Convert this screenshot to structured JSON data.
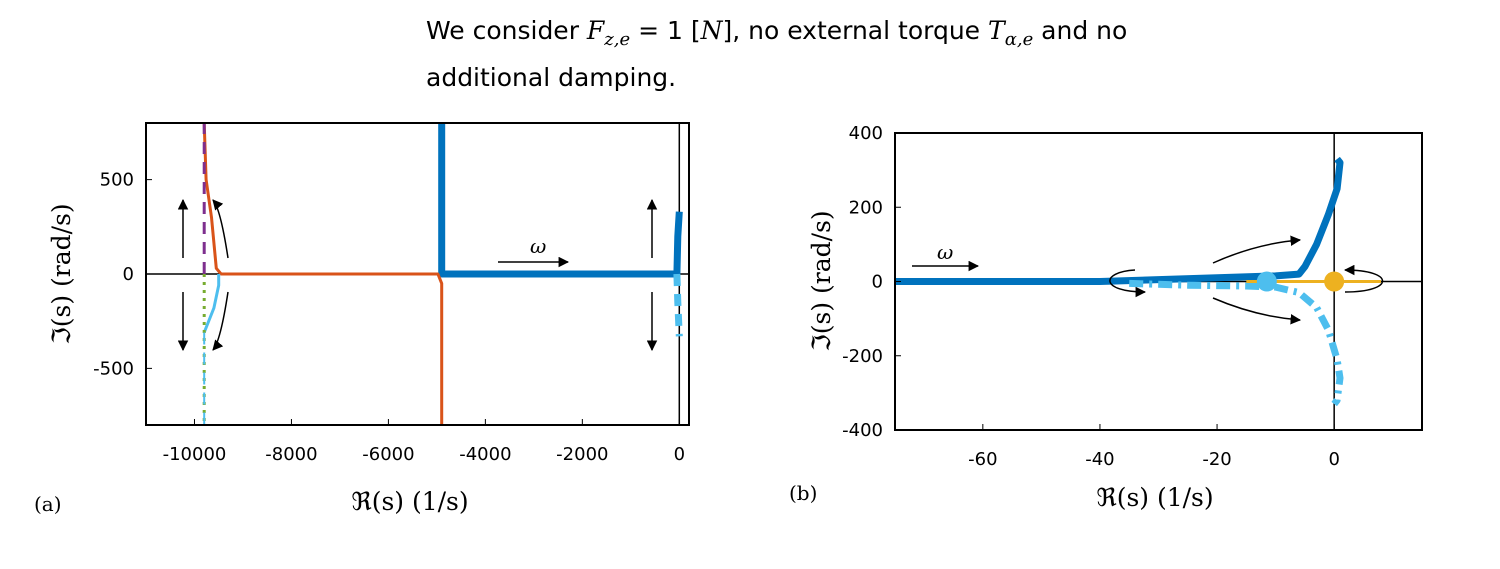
{
  "header": {
    "line1_pre": "We consider ",
    "force_symbol": "F",
    "force_sub": "z,e",
    "force_eq": " = 1 [",
    "force_unit": "N",
    "force_post": "], no external torque ",
    "torque_symbol": "T",
    "torque_sub": "α,e",
    "line1_end": " and no",
    "line2": "additional damping."
  },
  "colors": {
    "dark_blue": "#0072BD",
    "light_blue": "#4DBEEE",
    "orange": "#D95319",
    "yellow": "#EDB120",
    "purple": "#7E2F8E",
    "green": "#77AC30"
  },
  "chart_data": [
    {
      "panel": "(a)",
      "type": "line",
      "xlabel": "ℜ(s) (1/s)",
      "ylabel": "ℑ(s) (rad/s)",
      "xlim": [
        -11000,
        200
      ],
      "ylim": [
        -800,
        800
      ],
      "xticks": [
        -10000,
        -8000,
        -6000,
        -4000,
        -2000,
        0
      ],
      "yticks": [
        -500,
        0,
        500
      ],
      "annotation": "ω",
      "series": [
        {
          "color": "#0072BD",
          "style": "solid",
          "width": "thick",
          "points": [
            [
              -4900,
              800
            ],
            [
              -4900,
              0
            ],
            [
              -4850,
              0
            ],
            [
              -100,
              0
            ],
            [
              -50,
              0
            ]
          ]
        },
        {
          "color": "#0072BD",
          "style": "solid",
          "width": "thick",
          "points": [
            [
              -50,
              0
            ],
            [
              -30,
              200
            ],
            [
              0,
              330
            ]
          ]
        },
        {
          "color": "#4DBEEE",
          "style": "dashed",
          "width": "thick",
          "points": [
            [
              -50,
              0
            ],
            [
              -30,
              -150
            ],
            [
              0,
              -330
            ]
          ]
        },
        {
          "color": "#D95319",
          "style": "solid",
          "width": "medium",
          "points": [
            [
              -9800,
              800
            ],
            [
              -9760,
              500
            ],
            [
              -9650,
              300
            ],
            [
              -9550,
              30
            ],
            [
              -9450,
              0
            ],
            [
              -4980,
              0
            ],
            [
              -4900,
              -50
            ],
            [
              -4900,
              -800
            ]
          ]
        },
        {
          "color": "#4DBEEE",
          "style": "solid",
          "width": "medium",
          "points": [
            [
              -9500,
              0
            ],
            [
              -9500,
              -60
            ],
            [
              -9600,
              -180
            ],
            [
              -9800,
              -310
            ]
          ]
        },
        {
          "color": "#7E2F8E",
          "style": "dashed",
          "width": "medium",
          "points": [
            [
              -9800,
              0
            ],
            [
              -9800,
              800
            ]
          ]
        },
        {
          "color": "#77AC30",
          "style": "dotted",
          "width": "medium",
          "points": [
            [
              -9800,
              0
            ],
            [
              -9800,
              -800
            ]
          ]
        },
        {
          "color": "#4DBEEE",
          "style": "dashed",
          "width": "thin",
          "points": [
            [
              -9800,
              -310
            ],
            [
              -9800,
              -800
            ]
          ]
        }
      ]
    },
    {
      "panel": "(b)",
      "type": "line",
      "xlabel": "ℜ(s) (1/s)",
      "ylabel": "ℑ(s) (rad/s)",
      "xlim": [
        -75,
        15
      ],
      "ylim": [
        -400,
        400
      ],
      "xticks": [
        -60,
        -40,
        -20,
        0
      ],
      "yticks": [
        -400,
        -200,
        0,
        200,
        400
      ],
      "annotation": "ω",
      "series": [
        {
          "color": "#0072BD",
          "style": "solid",
          "width": "thick",
          "points": [
            [
              -75,
              0
            ],
            [
              -40,
              0
            ],
            [
              -30,
              5
            ],
            [
              -20,
              10
            ],
            [
              -10,
              15
            ],
            [
              -6,
              20
            ],
            [
              -5,
              40
            ],
            [
              -3,
              100
            ],
            [
              -1,
              180
            ],
            [
              0.5,
              250
            ],
            [
              1,
              320
            ],
            [
              0.5,
              330
            ]
          ]
        },
        {
          "color": "#4DBEEE",
          "style": "dashdot",
          "width": "thick",
          "points": [
            [
              -35,
              -5
            ],
            [
              -25,
              -10
            ],
            [
              -15,
              -12
            ],
            [
              -10,
              -15
            ],
            [
              -6,
              -30
            ],
            [
              -3,
              -70
            ],
            [
              -1,
              -130
            ],
            [
              0.5,
              -210
            ],
            [
              1,
              -260
            ],
            [
              0.5,
              -320
            ],
            [
              0,
              -330
            ]
          ]
        },
        {
          "color": "#EDB120",
          "style": "solid",
          "width": "medium",
          "points": [
            [
              -15,
              0
            ],
            [
              8,
              0
            ]
          ]
        }
      ],
      "markers": [
        {
          "x": -11.5,
          "y": 0,
          "color": "#4DBEEE"
        },
        {
          "x": 0,
          "y": 0,
          "color": "#EDB120"
        }
      ]
    }
  ]
}
